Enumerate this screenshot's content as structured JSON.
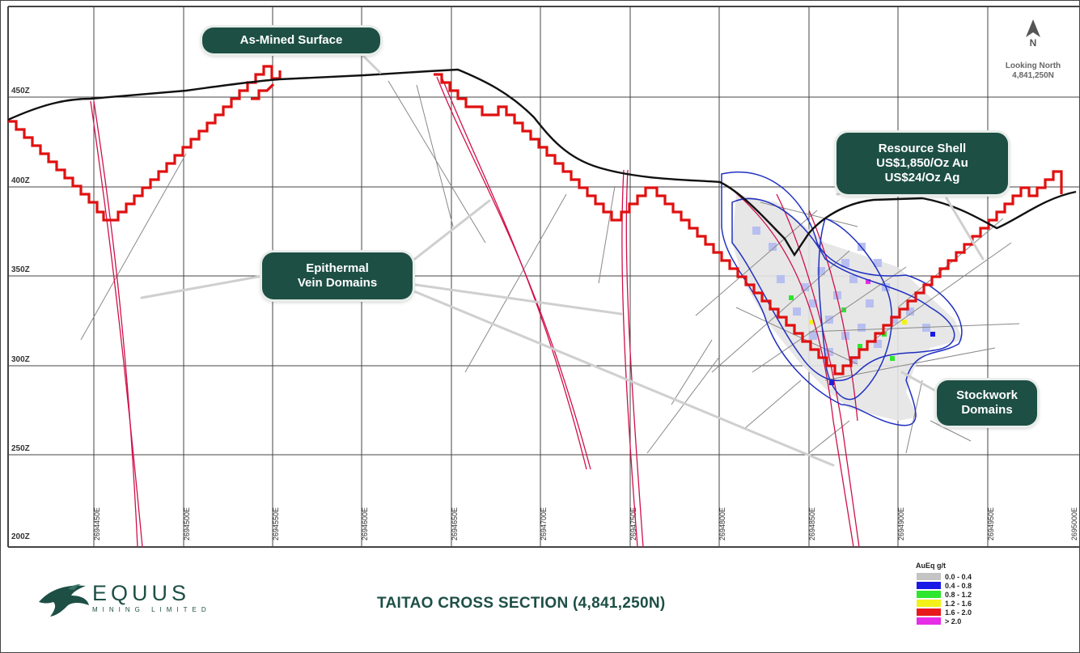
{
  "section": {
    "elevation_labels": [
      "450Z",
      "400Z",
      "350Z",
      "300Z",
      "250Z",
      "200Z"
    ],
    "easting_labels": [
      "2694450E",
      "2694500E",
      "2694550E",
      "2694600E",
      "2694650E",
      "2694700E",
      "2694750E",
      "2694800E",
      "2694850E",
      "2694900E",
      "2694950E",
      "2695000E"
    ]
  },
  "callouts": {
    "as_mined": "As-Mined Surface",
    "epithermal_line1": "Epithermal",
    "epithermal_line2": "Vein Domains",
    "resource_line1": "Resource Shell",
    "resource_line2": "US$1,850/Oz Au",
    "resource_line3": "US$24/Oz Ag",
    "stockwork_line1": "Stockwork",
    "stockwork_line2": "Domains"
  },
  "north_arrow": {
    "letter": "N",
    "looking": "Looking North",
    "northing": "4,841,250N"
  },
  "logo": {
    "name": "EQUUS",
    "subtitle": "MINING LIMITED"
  },
  "title": "TAITAO CROSS SECTION (4,841,250N)",
  "legend": {
    "title": "AuEq g/t",
    "items": [
      {
        "label": "0.0 - 0.4",
        "color": "#c4c4c4"
      },
      {
        "label": "0.4 - 0.8",
        "color": "#1a1ae6"
      },
      {
        "label": "0.8 - 1.2",
        "color": "#2ee62e"
      },
      {
        "label": "1.2 - 1.6",
        "color": "#f2f21a"
      },
      {
        "label": "1.6 - 2.0",
        "color": "#e61a1a"
      },
      {
        "label": "> 2.0",
        "color": "#e62ee6"
      }
    ]
  },
  "colors": {
    "callout_bg": "#1d4f45",
    "pit_shell": "#e01010",
    "surface": "#111111",
    "domain_outline": "#2030c0"
  }
}
